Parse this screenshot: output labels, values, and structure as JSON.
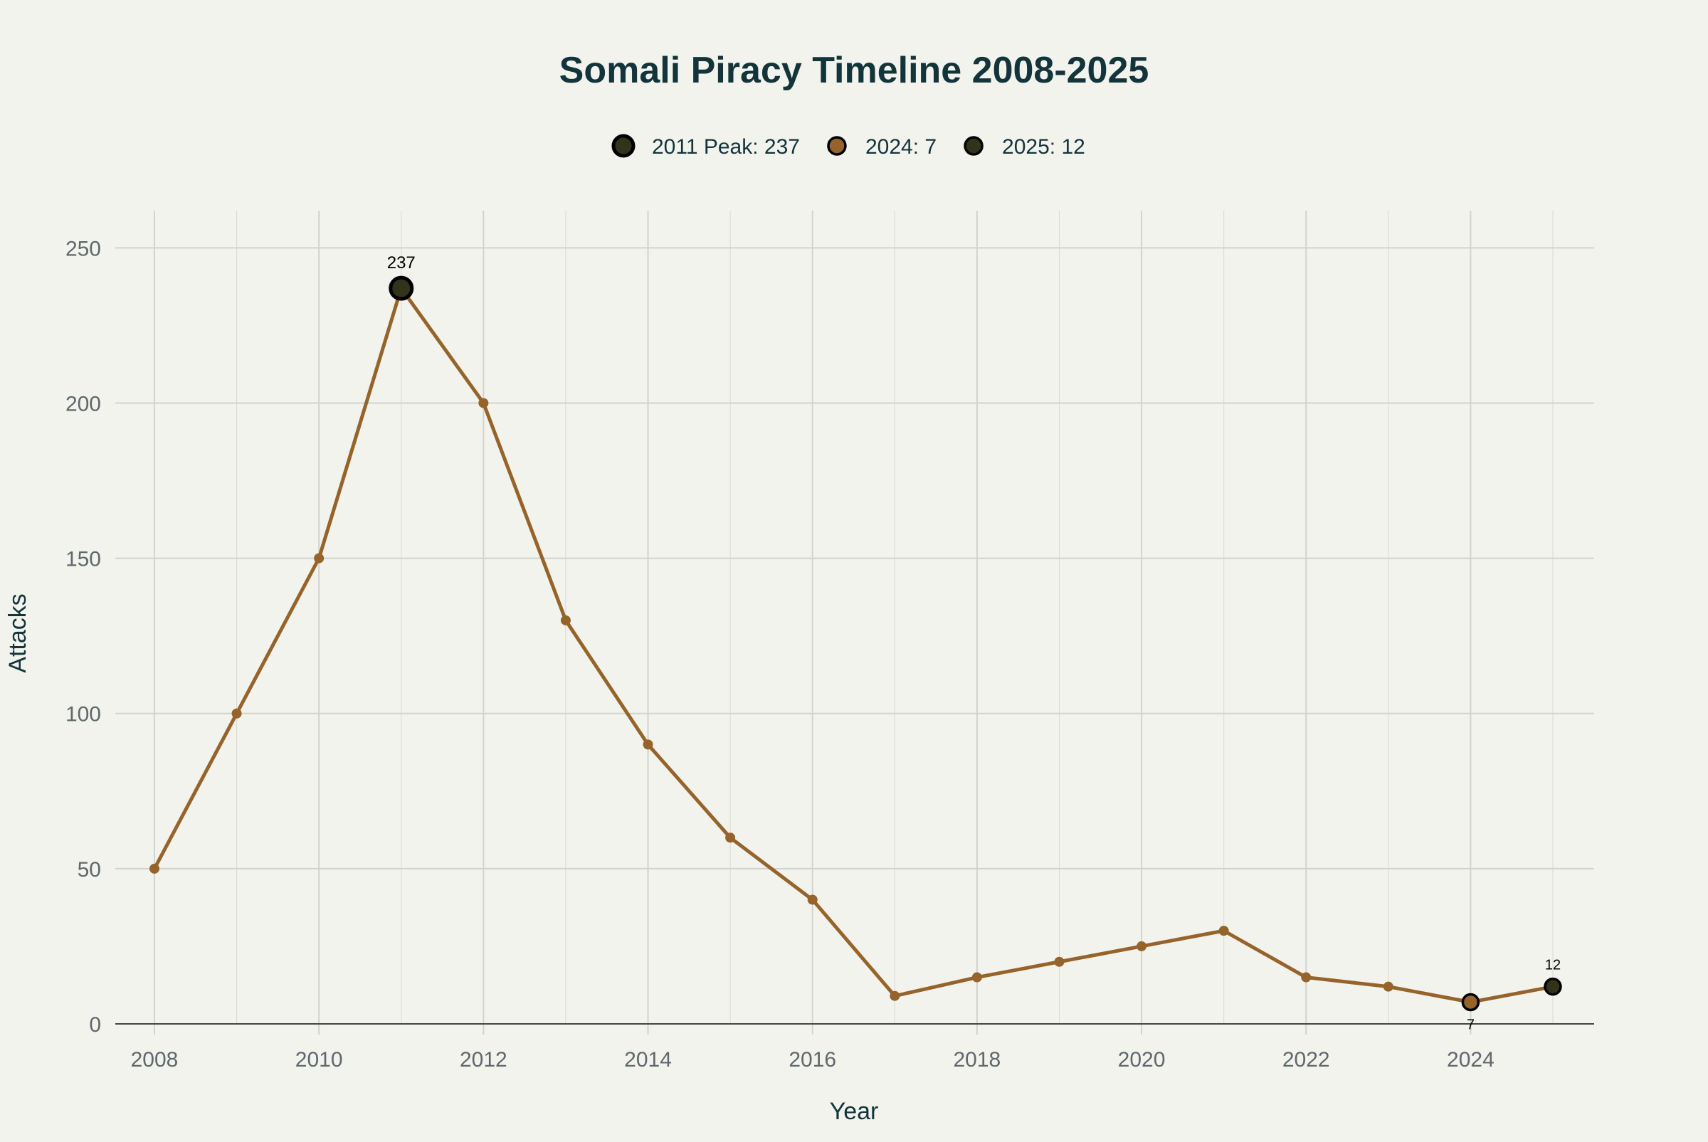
{
  "chart_data": {
    "type": "line",
    "title": "Somali Piracy Timeline 2008-2025",
    "xlabel": "Year",
    "ylabel": "Attacks",
    "x": [
      2008,
      2009,
      2010,
      2011,
      2012,
      2013,
      2014,
      2015,
      2016,
      2017,
      2018,
      2019,
      2020,
      2021,
      2022,
      2023,
      2024,
      2025
    ],
    "series": [
      {
        "values": [
          50,
          100,
          150,
          237,
          200,
          130,
          90,
          60,
          40,
          9,
          15,
          20,
          25,
          30,
          15,
          12,
          7,
          12
        ],
        "color": "#96632a"
      }
    ],
    "highlights": [
      {
        "name": "2011 Peak: 237",
        "x": 2011,
        "y": 237,
        "label": "237",
        "label_position": "top",
        "color": "#32331a",
        "size": "large"
      },
      {
        "name": "2024: 7",
        "x": 2024,
        "y": 7,
        "label": "7",
        "label_position": "bottom",
        "color": "#96632a",
        "size": "medium"
      },
      {
        "name": "2025: 12",
        "x": 2025,
        "y": 12,
        "label": "12",
        "label_position": "top",
        "color": "#32331a",
        "size": "medium"
      }
    ],
    "xticks": [
      "2008",
      "2010",
      "2012",
      "2014",
      "2016",
      "2018",
      "2020",
      "2022",
      "2024"
    ],
    "yticks": [
      "0",
      "50",
      "100",
      "150",
      "200",
      "250"
    ],
    "xlim": [
      2007.5,
      2025.5
    ],
    "ylim": [
      0,
      262
    ],
    "grid": true,
    "legend_position": "top-center"
  }
}
